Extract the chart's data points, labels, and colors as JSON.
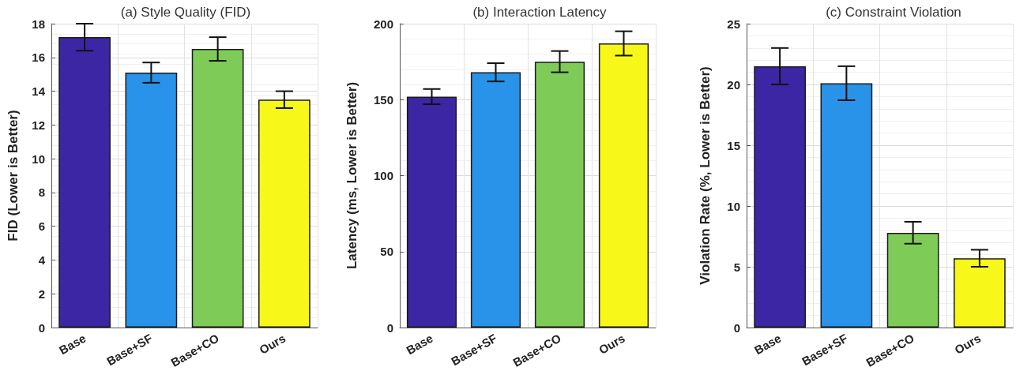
{
  "chart_data": [
    {
      "type": "bar",
      "title": "(a) Style Quality (FID)",
      "ylabel": "FID (Lower is Better)",
      "categories": [
        "Base",
        "Base+SF",
        "Base+CO",
        "Ours"
      ],
      "values": [
        17.2,
        15.1,
        16.5,
        13.5
      ],
      "errors": [
        0.8,
        0.6,
        0.7,
        0.5
      ],
      "colors": [
        "#3c26a4",
        "#2893e8",
        "#7fcb57",
        "#f7f719"
      ],
      "ylim": [
        0,
        18
      ],
      "yticks": [
        0,
        2,
        4,
        6,
        8,
        10,
        12,
        14,
        16,
        18
      ],
      "grid": true
    },
    {
      "type": "bar",
      "title": "(b) Interaction Latency",
      "ylabel": "Latency (ms, Lower is Better)",
      "categories": [
        "Base",
        "Base+SF",
        "Base+CO",
        "Ours"
      ],
      "values": [
        152,
        168,
        175,
        187
      ],
      "errors": [
        5,
        6,
        7,
        8
      ],
      "colors": [
        "#3c26a4",
        "#2893e8",
        "#7fcb57",
        "#f7f719"
      ],
      "ylim": [
        0,
        200
      ],
      "yticks": [
        0,
        50,
        100,
        150,
        200
      ],
      "grid": true
    },
    {
      "type": "bar",
      "title": "(c) Constraint Violation",
      "ylabel": "Violation Rate (%, Lower is Better)",
      "categories": [
        "Base",
        "Base+SF",
        "Base+CO",
        "Ours"
      ],
      "values": [
        21.5,
        20.1,
        7.8,
        5.7
      ],
      "errors": [
        1.5,
        1.4,
        0.9,
        0.7
      ],
      "colors": [
        "#3c26a4",
        "#2893e8",
        "#7fcb57",
        "#f7f719"
      ],
      "ylim": [
        0,
        25
      ],
      "yticks": [
        0,
        5,
        10,
        15,
        20,
        25
      ],
      "grid": true
    }
  ]
}
